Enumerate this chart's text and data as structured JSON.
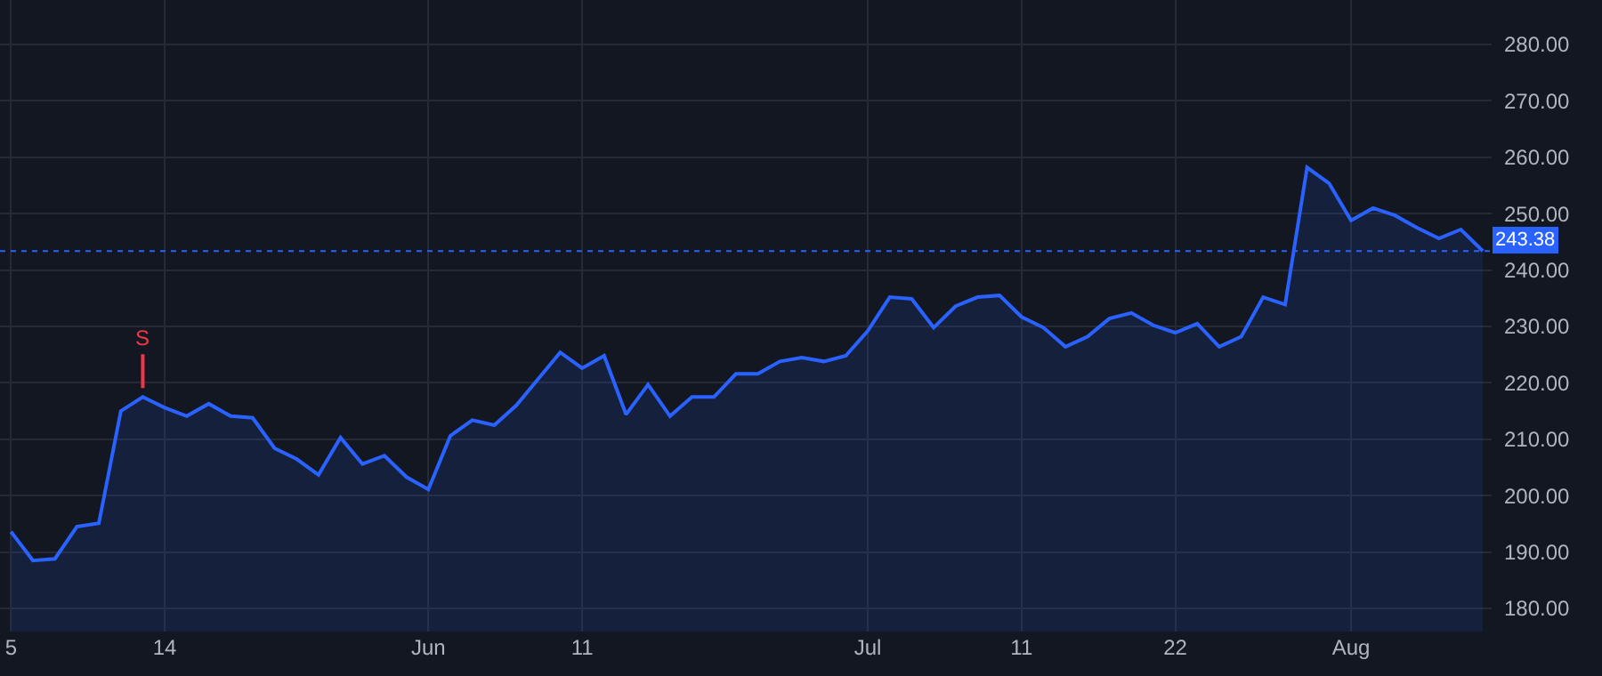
{
  "chart_data": {
    "type": "area",
    "categories": [
      "5",
      null,
      null,
      null,
      null,
      null,
      null,
      "14",
      null,
      null,
      null,
      null,
      null,
      null,
      null,
      null,
      null,
      null,
      null,
      "Jun",
      null,
      null,
      null,
      null,
      null,
      null,
      "11",
      null,
      null,
      null,
      null,
      null,
      null,
      null,
      null,
      null,
      null,
      null,
      null,
      "Jul",
      null,
      null,
      null,
      null,
      null,
      null,
      "11",
      null,
      null,
      null,
      null,
      null,
      null,
      "22",
      null,
      null,
      null,
      null,
      null,
      null,
      null,
      "Aug",
      null,
      null,
      null,
      null,
      null,
      null
    ],
    "series": [
      {
        "color": "#2962ff",
        "values": [
          193.6,
          188.5,
          188.8,
          194.5,
          195.1,
          215.0,
          217.5,
          215.6,
          214.1,
          216.3,
          214.1,
          213.8,
          208.4,
          206.5,
          203.7,
          210.3,
          205.6,
          207.1,
          203.3,
          201.1,
          210.6,
          213.4,
          212.5,
          216.0,
          220.7,
          225.4,
          222.6,
          224.8,
          214.4,
          219.7,
          214.1,
          217.5,
          217.5,
          221.6,
          221.6,
          223.8,
          224.5,
          223.8,
          224.8,
          229.2,
          235.2,
          234.9,
          229.8,
          233.6,
          235.2,
          235.5,
          231.7,
          229.8,
          226.4,
          228.2,
          231.4,
          232.4,
          230.2,
          228.9,
          230.5,
          226.4,
          228.2,
          235.2,
          233.9,
          258.2,
          255.4,
          248.8,
          251.0,
          249.7,
          247.5,
          245.6,
          247.2,
          243.38
        ]
      }
    ],
    "ylim": [
      175.9,
      287.9
    ],
    "yticks": [
      {
        "value": 180,
        "label": "180.00"
      },
      {
        "value": 190,
        "label": "190.00"
      },
      {
        "value": 200,
        "label": "200.00"
      },
      {
        "value": 210,
        "label": "210.00"
      },
      {
        "value": 220,
        "label": "220.00"
      },
      {
        "value": 230,
        "label": "230.00"
      },
      {
        "value": 240,
        "label": "240.00"
      },
      {
        "value": 250,
        "label": "250.00"
      },
      {
        "value": 260,
        "label": "260.00"
      },
      {
        "value": 270,
        "label": "270.00"
      },
      {
        "value": 280,
        "label": "280.00"
      }
    ],
    "ref_lines": [
      {
        "axis": "y",
        "value": 243.38,
        "label": "243.38",
        "color": "#2962ff",
        "line_style": "dotted"
      }
    ],
    "annotations": [
      {
        "text": "S",
        "y": 217.5
      }
    ],
    "grid": true,
    "marker": "none",
    "line_style": "solid"
  }
}
